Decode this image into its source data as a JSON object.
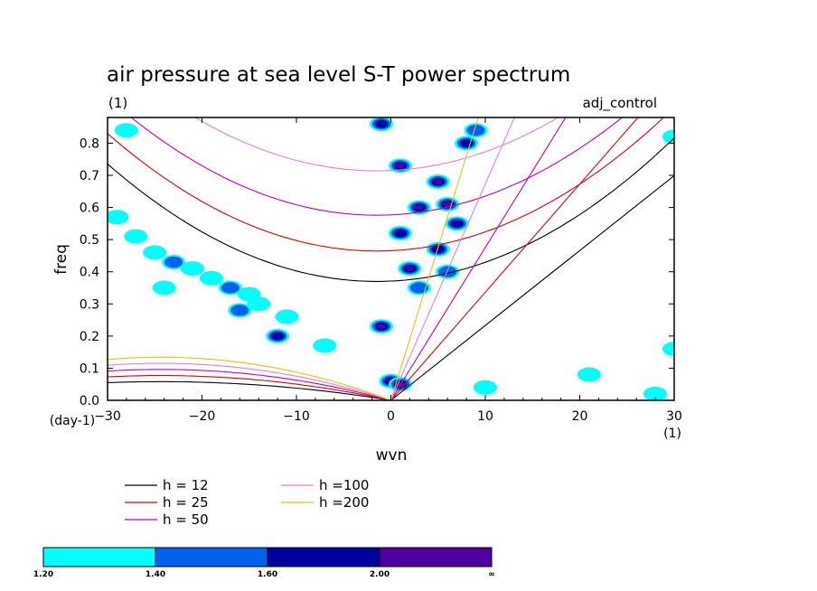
{
  "chart_data": {
    "type": "contour",
    "title": "air pressure at sea level S-T power spectrum",
    "subtitle_left": "(1)",
    "subtitle_right": "adj_control",
    "xlabel": "wvn",
    "ylabel": "freq",
    "x_unit": "(1)",
    "y_unit": "(day-1)",
    "xlim": [
      -30,
      30
    ],
    "ylim": [
      0,
      0.88
    ],
    "x_ticks": [
      -30,
      -20,
      -10,
      0,
      10,
      20,
      30
    ],
    "y_ticks": [
      0.0,
      0.1,
      0.2,
      0.3,
      0.4,
      0.5,
      0.6,
      0.7,
      0.8
    ],
    "x_tick_labels": [
      "−30",
      "−20",
      "−10",
      "0",
      "10",
      "20",
      "30"
    ],
    "y_tick_labels": [
      "0.0",
      "0.1",
      "0.2",
      "0.3",
      "0.4",
      "0.5",
      "0.6",
      "0.7",
      "0.8"
    ],
    "dispersion_curves": [
      {
        "name": "h = 12",
        "h": 12,
        "color": "#000000"
      },
      {
        "name": "h = 25",
        "h": 25,
        "color": "#e00000"
      },
      {
        "name": "h = 50",
        "h": 50,
        "color": "#c000c0"
      },
      {
        "name": "h =100",
        "h": 100,
        "color": "#e080e0"
      },
      {
        "name": "h =200",
        "h": 200,
        "color": "#f0c000"
      }
    ],
    "colorbar": {
      "levels": [
        "1.20",
        "1.40",
        "1.60",
        "2.00",
        "∞"
      ],
      "colors": [
        "#00ffff",
        "#0060f0",
        "#0000a0",
        "#5000a0"
      ]
    },
    "power_regions": [
      {
        "x": -27,
        "y": 0.51,
        "level": 1
      },
      {
        "x": -25,
        "y": 0.46,
        "level": 1
      },
      {
        "x": -23,
        "y": 0.43,
        "level": 2
      },
      {
        "x": -21,
        "y": 0.41,
        "level": 1
      },
      {
        "x": -19,
        "y": 0.38,
        "level": 1
      },
      {
        "x": -17,
        "y": 0.35,
        "level": 2
      },
      {
        "x": -15,
        "y": 0.33,
        "level": 1
      },
      {
        "x": -14,
        "y": 0.3,
        "level": 1
      },
      {
        "x": -16,
        "y": 0.28,
        "level": 2
      },
      {
        "x": -11,
        "y": 0.26,
        "level": 1
      },
      {
        "x": -12,
        "y": 0.2,
        "level": 3
      },
      {
        "x": -7,
        "y": 0.17,
        "level": 1
      },
      {
        "x": -29,
        "y": 0.57,
        "level": 1
      },
      {
        "x": -24,
        "y": 0.35,
        "level": 1
      },
      {
        "x": -28,
        "y": 0.84,
        "level": 1
      },
      {
        "x": -1,
        "y": 0.23,
        "level": 4
      },
      {
        "x": 0,
        "y": 0.06,
        "level": 4
      },
      {
        "x": 1,
        "y": 0.05,
        "level": 4
      },
      {
        "x": 1,
        "y": 0.73,
        "level": 4
      },
      {
        "x": 1,
        "y": 0.52,
        "level": 3
      },
      {
        "x": 2,
        "y": 0.41,
        "level": 4
      },
      {
        "x": 3,
        "y": 0.6,
        "level": 4
      },
      {
        "x": 3,
        "y": 0.35,
        "level": 2
      },
      {
        "x": 5,
        "y": 0.47,
        "level": 3
      },
      {
        "x": 6,
        "y": 0.61,
        "level": 4
      },
      {
        "x": 7,
        "y": 0.55,
        "level": 3
      },
      {
        "x": 8,
        "y": 0.8,
        "level": 3
      },
      {
        "x": 9,
        "y": 0.84,
        "level": 2
      },
      {
        "x": 5,
        "y": 0.68,
        "level": 4
      },
      {
        "x": 6,
        "y": 0.4,
        "level": 2
      },
      {
        "x": -1,
        "y": 0.86,
        "level": 3
      },
      {
        "x": 10,
        "y": 0.04,
        "level": 1
      },
      {
        "x": 21,
        "y": 0.08,
        "level": 1
      },
      {
        "x": 28,
        "y": 0.02,
        "level": 1
      },
      {
        "x": 30,
        "y": 0.16,
        "level": 1
      },
      {
        "x": 30,
        "y": 0.82,
        "level": 1
      }
    ]
  }
}
